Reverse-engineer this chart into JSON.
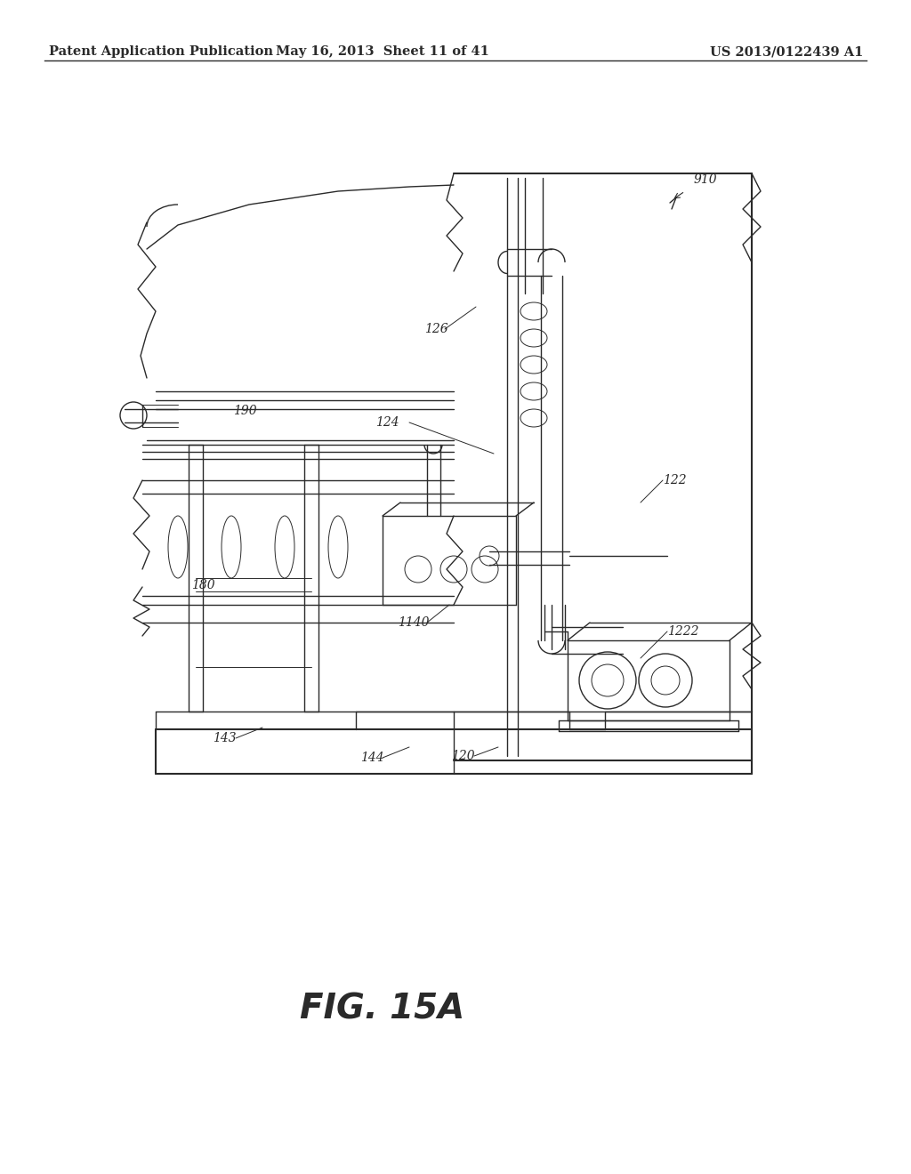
{
  "header_left": "Patent Application Publication",
  "header_center": "May 16, 2013  Sheet 11 of 41",
  "header_right": "US 2013/0122439 A1",
  "figure_label": "FIG. 15A",
  "bg_color": "#ffffff",
  "line_color": "#2a2a2a",
  "header_fontsize": 10.5,
  "figure_label_fontsize": 28,
  "ref_fontsize": 10
}
